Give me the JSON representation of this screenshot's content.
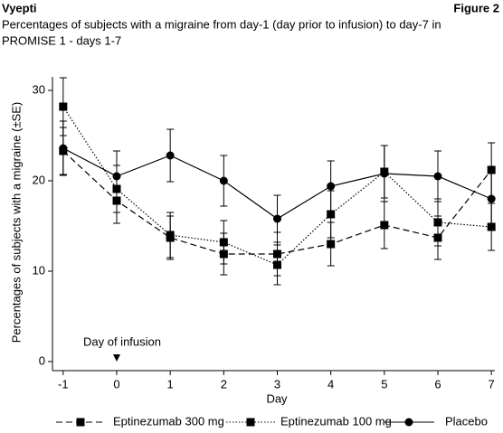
{
  "header": {
    "left": "Vyepti",
    "right": "Figure 2"
  },
  "chart_data": {
    "type": "line",
    "title": [
      "Percentages of subjects with a migraine from day-1 (day prior to infusion) to day-7 in",
      "PROMISE 1 - days 1-7"
    ],
    "x_label": "Day",
    "y_label": "Percentages of subjects with a migraine (±SE)",
    "annotation": "Day of infusion",
    "annotation_x": 0,
    "x": [
      -1,
      0,
      1,
      2,
      3,
      4,
      5,
      6,
      7
    ],
    "xlim": [
      -1.2,
      7.2
    ],
    "xticks": [
      -1,
      0,
      1,
      2,
      3,
      4,
      5,
      6,
      7
    ],
    "ylim": [
      -1,
      31.5
    ],
    "yticks": [
      0,
      10,
      20,
      30
    ],
    "series": [
      {
        "name": "Eptinezumab 300 mg",
        "color": "#000000",
        "dash": "dashed",
        "marker": "square",
        "values": [
          23.3,
          17.8,
          13.7,
          11.9,
          11.9,
          13.0,
          15.1,
          13.7,
          21.2
        ],
        "errors": [
          2.6,
          2.5,
          2.4,
          2.3,
          2.4,
          2.4,
          2.6,
          2.4,
          3.0
        ]
      },
      {
        "name": "Eptinezumab 100 mg",
        "color": "#000000",
        "dash": "dotted",
        "marker": "square",
        "values": [
          28.2,
          19.1,
          14.0,
          13.2,
          10.7,
          16.3,
          21.0,
          15.4,
          14.9
        ],
        "errors": [
          3.2,
          2.6,
          2.5,
          2.4,
          2.2,
          2.6,
          2.9,
          2.6,
          2.6
        ]
      },
      {
        "name": "Placebo",
        "color": "#000000",
        "dash": "solid",
        "marker": "circle",
        "values": [
          23.6,
          20.5,
          22.8,
          20.0,
          15.8,
          19.4,
          20.8,
          20.5,
          18.0
        ],
        "errors": [
          3.0,
          2.8,
          2.9,
          2.8,
          2.6,
          2.8,
          3.1,
          2.8,
          3.0
        ]
      }
    ]
  }
}
